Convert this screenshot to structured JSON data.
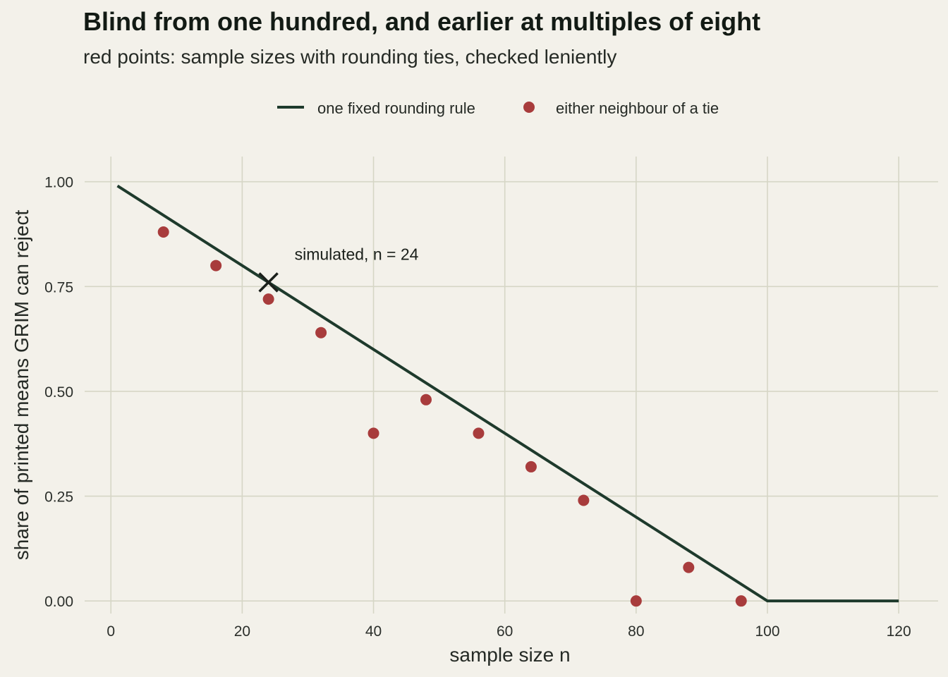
{
  "chart_data": {
    "type": "line",
    "title": "Blind from one hundred, and earlier at multiples of eight",
    "subtitle": "red points: sample sizes with rounding ties, checked leniently",
    "xlabel": "sample size n",
    "ylabel": "share of printed means GRIM can reject",
    "xlim": [
      -4,
      126
    ],
    "ylim": [
      -0.03,
      1.06
    ],
    "x_ticks": [
      0,
      20,
      40,
      60,
      80,
      100,
      120
    ],
    "y_ticks": [
      0.0,
      0.25,
      0.5,
      0.75,
      1.0
    ],
    "x_tick_labels": [
      "0",
      "20",
      "40",
      "60",
      "80",
      "100",
      "120"
    ],
    "y_tick_labels": [
      "0.00",
      "0.25",
      "0.50",
      "0.75",
      "1.00"
    ],
    "grid": true,
    "legend_position": "top-center",
    "series": [
      {
        "name": "one fixed rounding rule",
        "type": "line",
        "color": "#1e3a2c",
        "x": [
          1,
          100,
          120
        ],
        "y": [
          0.99,
          0.0,
          0.0
        ]
      },
      {
        "name": "either neighbour of a tie",
        "type": "scatter",
        "color": "#a83c3c",
        "x": [
          8,
          16,
          24,
          32,
          40,
          48,
          56,
          64,
          72,
          80,
          88,
          96
        ],
        "y": [
          0.88,
          0.8,
          0.72,
          0.64,
          0.4,
          0.48,
          0.4,
          0.32,
          0.24,
          0.0,
          0.08,
          0.0
        ]
      }
    ],
    "annotations": [
      {
        "text": "simulated, n = 24",
        "marker": "x",
        "x": 24,
        "y": 0.76,
        "color": "#1a1f1a"
      }
    ]
  }
}
